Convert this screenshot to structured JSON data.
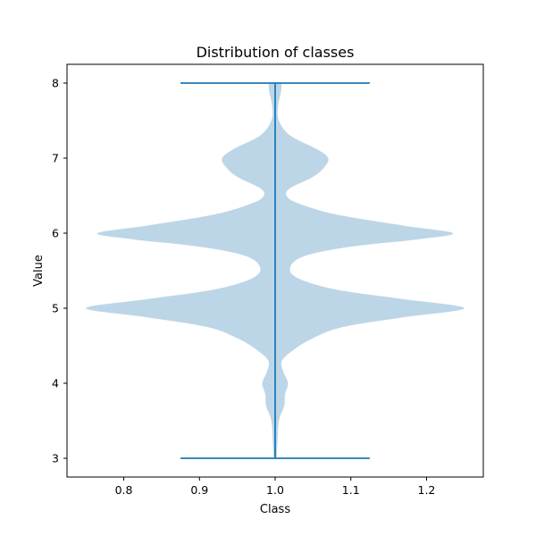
{
  "chart_data": {
    "type": "violin",
    "title": "Distribution of classes",
    "xlabel": "Class",
    "ylabel": "Value",
    "xlim": [
      0.725,
      1.275
    ],
    "ylim": [
      2.75,
      8.25
    ],
    "xticks": [
      0.8,
      0.9,
      1.0,
      1.1,
      1.2
    ],
    "xtick_labels": [
      "0.8",
      "0.9",
      "1.0",
      "1.1",
      "1.2"
    ],
    "yticks": [
      3,
      4,
      5,
      6,
      7,
      8
    ],
    "ytick_labels": [
      "3",
      "4",
      "5",
      "6",
      "7",
      "8"
    ],
    "grid": false,
    "colors": {
      "fill": "#bcd6e8",
      "line": "#1f77b4"
    },
    "violins": [
      {
        "position": 1.0,
        "min": 3,
        "max": 8,
        "extrema_halfwidth": 0.125,
        "density_profile": {
          "y": [
            3.0,
            3.2,
            3.5,
            3.7,
            3.85,
            4.0,
            4.15,
            4.3,
            4.45,
            4.6,
            4.75,
            4.88,
            5.0,
            5.12,
            5.25,
            5.4,
            5.55,
            5.7,
            5.82,
            5.92,
            6.0,
            6.1,
            6.25,
            6.4,
            6.5,
            6.6,
            6.75,
            6.88,
            7.0,
            7.12,
            7.3,
            7.5,
            7.7,
            7.9,
            8.0
          ],
          "halfwidth": [
            0.002,
            0.003,
            0.005,
            0.012,
            0.013,
            0.017,
            0.011,
            0.009,
            0.025,
            0.05,
            0.09,
            0.17,
            0.25,
            0.17,
            0.08,
            0.03,
            0.02,
            0.04,
            0.1,
            0.19,
            0.235,
            0.17,
            0.08,
            0.03,
            0.015,
            0.02,
            0.05,
            0.065,
            0.07,
            0.055,
            0.02,
            0.005,
            0.004,
            0.008,
            0.007
          ]
        }
      }
    ]
  }
}
